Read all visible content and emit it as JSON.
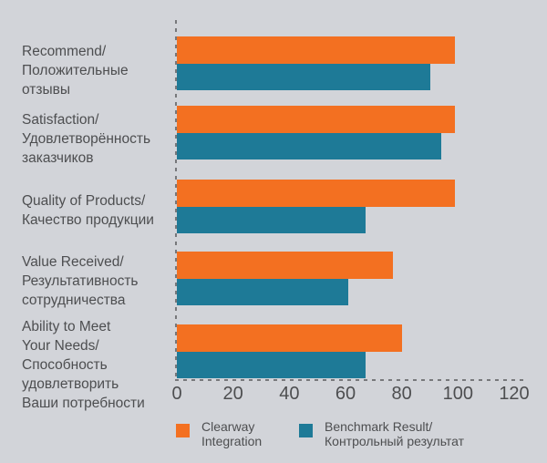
{
  "chart_data": {
    "type": "bar",
    "orientation": "horizontal",
    "title": "",
    "xlabel": "",
    "ylabel": "",
    "xlim": [
      0,
      120
    ],
    "xticks": [
      0,
      20,
      40,
      60,
      80,
      100,
      120
    ],
    "grid": "dashed y-axis and x-baseline only",
    "legend_position": "bottom",
    "categories": [
      "Recommend/ Положительные отзывы",
      "Satisfaction/ Удовлетворённость заказчиков",
      "Quality of Products/ Качество продукции",
      "Value Received/ Результативность сотрудничества",
      "Ability to Meet Your Needs/ Способность удовлетворить Ваши потребности"
    ],
    "category_lines": [
      [
        "Recommend/",
        "Положительные",
        "отзывы"
      ],
      [
        "Satisfaction/",
        "Удовлетворённость",
        "заказчиков"
      ],
      [
        "Quality of Products/",
        "Качество продукции"
      ],
      [
        "Value Received/",
        "Результативность",
        "сотрудничества"
      ],
      [
        "Ability to Meet",
        "Your Needs/",
        "Способность",
        "удовлетворить",
        "Ваши потребности"
      ]
    ],
    "series": [
      {
        "name": "Clearway Integration",
        "color": "#F37021",
        "values": [
          99,
          99,
          99,
          77,
          80
        ]
      },
      {
        "name": "Benchmark Result/Контрольный результат",
        "color": "#1E7A97",
        "values": [
          90,
          94,
          67,
          61,
          67
        ]
      }
    ]
  },
  "legend": {
    "items": [
      {
        "lines": [
          "Clearway",
          "Integration"
        ],
        "color": "#F37021"
      },
      {
        "lines": [
          "Benchmark Result/",
          "Контрольный результат"
        ],
        "color": "#1E7A97"
      }
    ]
  },
  "colors": {
    "background": "#D2D4D9",
    "text": "#4D4E50",
    "axis_dash": "#77787B"
  }
}
